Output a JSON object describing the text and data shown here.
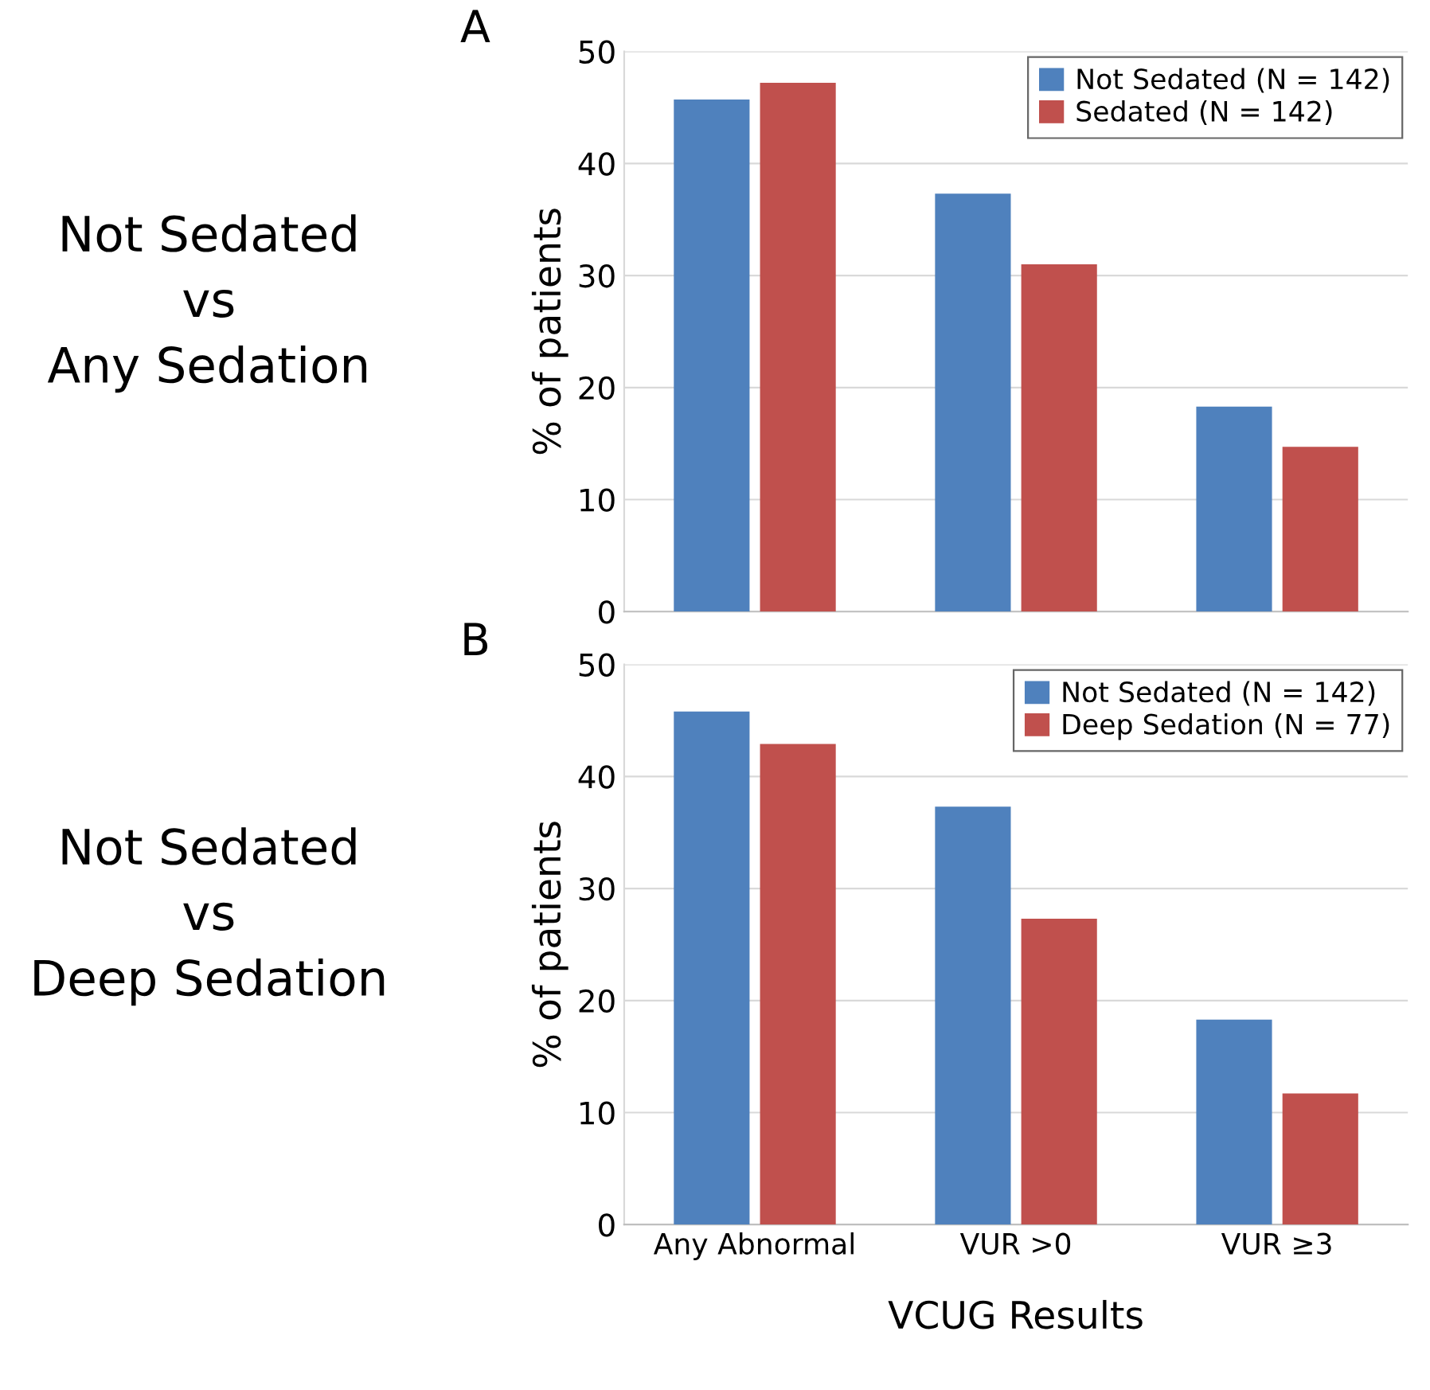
{
  "chart_data": [
    {
      "type": "bar",
      "title": "A",
      "annotations": [
        "Not Sedated\nvs\nAny Sedation"
      ],
      "ylabel": "% of patients",
      "categories": [
        null,
        null,
        null
      ],
      "series": [
        {
          "name": "Not Sedated (N = 142)",
          "color": "#4f81bd",
          "values": [
            45.7,
            37.3,
            18.3
          ]
        },
        {
          "name": "Sedated (N = 142)",
          "color": "#c0504d",
          "values": [
            47.2,
            31.0,
            14.7
          ]
        }
      ],
      "ylim": [
        0,
        50
      ],
      "yticks": [
        0,
        10,
        20,
        30,
        40,
        50
      ],
      "grid": "y",
      "legend": "top right",
      "tick_labels": "y"
    },
    {
      "type": "bar",
      "title": "B",
      "annotations": [
        "Not Sedated\nvs\nDeep Sedation"
      ],
      "ylabel": "% of patients",
      "xlabel": "VCUG Results",
      "categories": [
        "Any Abnormal",
        "VUR >0",
        "VUR ≥3"
      ],
      "series": [
        {
          "name": "Not Sedated (N = 142)",
          "color": "#4f81bd",
          "values": [
            45.8,
            37.3,
            18.3
          ]
        },
        {
          "name": "Deep Sedation (N = 77)",
          "color": "#c0504d",
          "values": [
            42.9,
            27.3,
            11.7
          ]
        }
      ],
      "ylim": [
        0,
        50
      ],
      "yticks": [
        0,
        10,
        20,
        30,
        40,
        50
      ],
      "grid": "y",
      "legend": "top right"
    }
  ]
}
